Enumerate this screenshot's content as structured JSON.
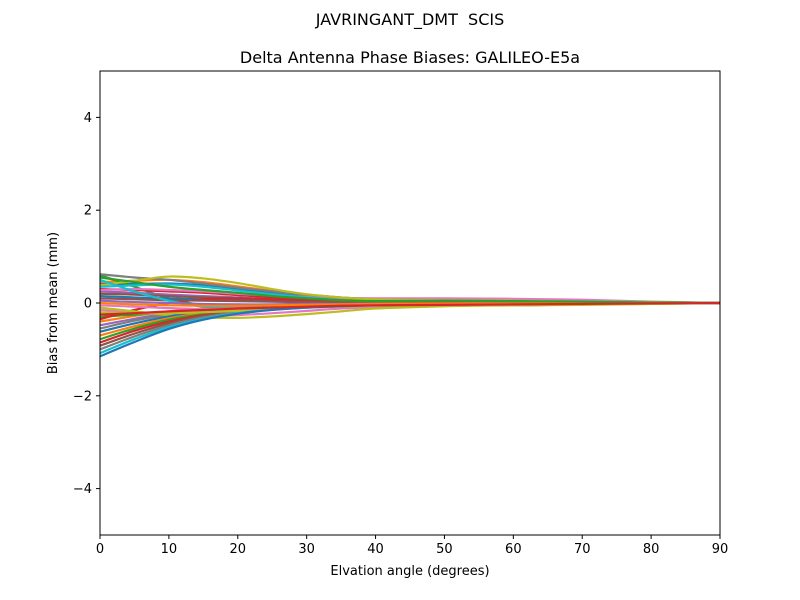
{
  "chart_data": {
    "type": "line",
    "suptitle": "JAVRINGANT_DMT  SCIS",
    "title": "Delta Antenna Phase Biases: GALILEO-E5a",
    "xlabel": "Elvation angle (degrees)",
    "ylabel": "Bias from mean (mm)",
    "xlim": [
      0,
      90
    ],
    "ylim": [
      -5,
      5
    ],
    "xticks": [
      0,
      10,
      20,
      30,
      40,
      50,
      60,
      70,
      80,
      90
    ],
    "yticks": [
      -4,
      -2,
      0,
      2,
      4
    ],
    "grid": false,
    "legend": "none",
    "x": [
      0,
      5,
      10,
      15,
      20,
      25,
      30,
      35,
      40,
      50,
      60,
      70,
      80,
      90
    ],
    "series": [
      {
        "name": "line-01",
        "color": "#1f77b4",
        "values": [
          0.42,
          0.41,
          0.42,
          0.38,
          0.3,
          0.22,
          0.15,
          0.08,
          0.05,
          0.03,
          0.05,
          0.03,
          0.01,
          0.0
        ]
      },
      {
        "name": "line-02",
        "color": "#ff7f0e",
        "values": [
          0.45,
          0.48,
          0.5,
          0.45,
          0.36,
          0.26,
          0.17,
          0.1,
          0.07,
          0.08,
          0.06,
          0.04,
          0.02,
          0.0
        ]
      },
      {
        "name": "line-03",
        "color": "#2ca02c",
        "values": [
          0.6,
          0.35,
          0.1,
          -0.05,
          -0.1,
          -0.1,
          -0.08,
          -0.06,
          -0.05,
          -0.03,
          -0.02,
          -0.01,
          -0.01,
          0.0
        ]
      },
      {
        "name": "line-04",
        "color": "#d62728",
        "values": [
          0.3,
          0.28,
          0.25,
          0.22,
          0.17,
          0.12,
          0.08,
          0.05,
          0.03,
          0.04,
          0.03,
          0.02,
          0.01,
          0.0
        ]
      },
      {
        "name": "line-05",
        "color": "#9467bd",
        "values": [
          0.25,
          0.22,
          0.18,
          0.15,
          0.12,
          0.08,
          0.05,
          0.03,
          0.02,
          0.01,
          0.02,
          0.01,
          0.0,
          0.0
        ]
      },
      {
        "name": "line-06",
        "color": "#8c564b",
        "values": [
          0.2,
          0.18,
          0.15,
          0.12,
          0.1,
          0.08,
          0.06,
          0.04,
          0.03,
          0.02,
          0.03,
          0.02,
          0.01,
          0.0
        ]
      },
      {
        "name": "line-07",
        "color": "#e377c2",
        "values": [
          0.28,
          0.3,
          0.28,
          0.25,
          0.2,
          0.16,
          0.13,
          0.11,
          0.1,
          0.1,
          0.09,
          0.07,
          0.03,
          0.0
        ]
      },
      {
        "name": "line-08",
        "color": "#7f7f7f",
        "values": [
          0.62,
          0.55,
          0.5,
          0.42,
          0.33,
          0.25,
          0.18,
          0.12,
          0.08,
          0.06,
          0.05,
          0.03,
          0.02,
          0.0
        ]
      },
      {
        "name": "line-09",
        "color": "#bcbd22",
        "values": [
          0.38,
          0.48,
          0.57,
          0.53,
          0.43,
          0.3,
          0.19,
          0.12,
          0.08,
          0.06,
          0.05,
          0.03,
          0.02,
          0.0
        ]
      },
      {
        "name": "line-10",
        "color": "#17becf",
        "values": [
          0.35,
          0.38,
          0.4,
          0.35,
          0.27,
          0.19,
          0.12,
          0.06,
          0.03,
          0.02,
          0.03,
          0.02,
          0.01,
          0.0
        ]
      },
      {
        "name": "line-11",
        "color": "#1f77b4",
        "values": [
          0.15,
          0.12,
          0.1,
          0.08,
          0.06,
          0.04,
          0.03,
          0.02,
          0.02,
          0.01,
          0.01,
          0.01,
          0.0,
          0.0
        ]
      },
      {
        "name": "line-12",
        "color": "#ff7f0e",
        "values": [
          -0.4,
          -0.28,
          -0.18,
          -0.12,
          -0.09,
          -0.07,
          -0.06,
          -0.05,
          -0.04,
          -0.03,
          -0.02,
          -0.01,
          0.0,
          0.0
        ]
      },
      {
        "name": "line-13",
        "color": "#2ca02c",
        "values": [
          -0.3,
          -0.25,
          -0.2,
          -0.16,
          -0.13,
          -0.1,
          -0.08,
          -0.06,
          -0.04,
          -0.03,
          -0.05,
          -0.03,
          -0.01,
          0.0
        ]
      },
      {
        "name": "line-14",
        "color": "#d62728",
        "values": [
          -0.35,
          -0.15,
          0.0,
          0.08,
          0.1,
          0.08,
          0.06,
          0.04,
          0.03,
          0.02,
          0.01,
          0.01,
          0.0,
          0.0
        ]
      },
      {
        "name": "line-15",
        "color": "#9467bd",
        "values": [
          -0.48,
          -0.34,
          -0.22,
          -0.15,
          -0.11,
          -0.08,
          -0.06,
          -0.05,
          -0.04,
          -0.02,
          -0.01,
          -0.01,
          0.0,
          0.0
        ]
      },
      {
        "name": "line-16",
        "color": "#8c564b",
        "values": [
          0.1,
          0.08,
          0.06,
          0.05,
          0.04,
          0.03,
          0.02,
          0.02,
          0.01,
          0.01,
          0.0,
          0.0,
          0.0,
          0.0
        ]
      },
      {
        "name": "line-17",
        "color": "#e377c2",
        "values": [
          -0.15,
          -0.2,
          -0.25,
          -0.28,
          -0.26,
          -0.22,
          -0.17,
          -0.12,
          -0.09,
          -0.06,
          -0.04,
          -0.03,
          -0.01,
          0.0
        ]
      },
      {
        "name": "line-18",
        "color": "#7f7f7f",
        "values": [
          -0.55,
          -0.38,
          -0.25,
          -0.17,
          -0.12,
          -0.09,
          -0.07,
          -0.05,
          -0.03,
          -0.02,
          -0.02,
          -0.01,
          0.0,
          0.0
        ]
      },
      {
        "name": "line-19",
        "color": "#bcbd22",
        "values": [
          -0.1,
          -0.18,
          -0.26,
          -0.31,
          -0.32,
          -0.29,
          -0.24,
          -0.18,
          -0.12,
          -0.07,
          -0.05,
          -0.03,
          -0.02,
          0.0
        ]
      },
      {
        "name": "line-20",
        "color": "#17becf",
        "values": [
          0.5,
          0.25,
          0.05,
          -0.08,
          -0.12,
          -0.1,
          -0.08,
          -0.05,
          -0.03,
          -0.02,
          -0.02,
          -0.01,
          0.0,
          0.0
        ]
      },
      {
        "name": "line-21",
        "color": "#1f77b4",
        "values": [
          -0.62,
          -0.44,
          -0.29,
          -0.19,
          -0.13,
          -0.09,
          -0.06,
          -0.04,
          -0.03,
          -0.02,
          -0.01,
          0.0,
          0.0,
          0.0
        ]
      },
      {
        "name": "line-22",
        "color": "#ff7f0e",
        "values": [
          -0.7,
          -0.5,
          -0.33,
          -0.22,
          -0.15,
          -0.1,
          -0.07,
          -0.05,
          -0.03,
          -0.02,
          -0.01,
          -0.01,
          0.0,
          0.0
        ]
      },
      {
        "name": "line-23",
        "color": "#2ca02c",
        "values": [
          -0.78,
          -0.55,
          -0.36,
          -0.24,
          -0.16,
          -0.11,
          -0.08,
          -0.05,
          -0.04,
          -0.02,
          -0.02,
          -0.01,
          0.0,
          0.0
        ]
      },
      {
        "name": "line-24",
        "color": "#d62728",
        "values": [
          -0.85,
          -0.6,
          -0.4,
          -0.26,
          -0.17,
          -0.12,
          -0.08,
          -0.06,
          -0.04,
          -0.03,
          -0.02,
          -0.01,
          0.0,
          0.0
        ]
      },
      {
        "name": "line-25",
        "color": "#9467bd",
        "values": [
          0.05,
          0.02,
          0.0,
          -0.02,
          -0.03,
          -0.03,
          -0.02,
          -0.02,
          -0.01,
          -0.01,
          0.0,
          0.0,
          0.0,
          0.0
        ]
      },
      {
        "name": "line-26",
        "color": "#8c564b",
        "values": [
          -0.92,
          -0.66,
          -0.44,
          -0.28,
          -0.18,
          -0.12,
          -0.08,
          -0.05,
          -0.03,
          -0.02,
          -0.01,
          0.0,
          0.0,
          0.0
        ]
      },
      {
        "name": "line-27",
        "color": "#e377c2",
        "values": [
          -0.05,
          -0.08,
          -0.11,
          -0.13,
          -0.13,
          -0.11,
          -0.09,
          -0.07,
          -0.05,
          -0.04,
          -0.03,
          -0.02,
          -0.01,
          0.0
        ]
      },
      {
        "name": "line-28",
        "color": "#7f7f7f",
        "values": [
          -1.0,
          -0.72,
          -0.48,
          -0.31,
          -0.2,
          -0.13,
          -0.09,
          -0.06,
          -0.04,
          -0.02,
          -0.01,
          -0.01,
          0.0,
          0.0
        ]
      },
      {
        "name": "line-29",
        "color": "#bcbd22",
        "values": [
          -0.2,
          -0.22,
          -0.22,
          -0.2,
          -0.17,
          -0.14,
          -0.1,
          -0.08,
          -0.06,
          -0.05,
          -0.05,
          -0.04,
          -0.02,
          0.0
        ]
      },
      {
        "name": "line-30",
        "color": "#17becf",
        "values": [
          -1.08,
          -0.78,
          -0.52,
          -0.34,
          -0.22,
          -0.14,
          -0.09,
          -0.06,
          -0.04,
          -0.03,
          -0.02,
          -0.01,
          0.0,
          0.0
        ]
      },
      {
        "name": "line-31",
        "color": "#1f77b4",
        "values": [
          -1.15,
          -0.84,
          -0.56,
          -0.36,
          -0.23,
          -0.15,
          -0.1,
          -0.07,
          -0.05,
          -0.03,
          -0.02,
          -0.01,
          0.0,
          0.0
        ]
      },
      {
        "name": "line-32",
        "color": "#ff7f0e",
        "values": [
          0.0,
          -0.03,
          -0.05,
          -0.06,
          -0.06,
          -0.05,
          -0.04,
          -0.03,
          -0.02,
          -0.01,
          -0.01,
          0.0,
          0.0,
          0.0
        ]
      },
      {
        "name": "line-33",
        "color": "#2ca02c",
        "values": [
          0.55,
          0.45,
          0.35,
          0.28,
          0.22,
          0.15,
          0.1,
          0.06,
          0.04,
          0.05,
          0.04,
          0.03,
          0.01,
          0.0
        ]
      },
      {
        "name": "line-34",
        "color": "#d62728",
        "values": [
          -0.25,
          -0.22,
          -0.18,
          -0.15,
          -0.12,
          -0.1,
          -0.08,
          -0.06,
          -0.05,
          -0.04,
          -0.03,
          -0.02,
          -0.01,
          0.0
        ]
      }
    ]
  }
}
